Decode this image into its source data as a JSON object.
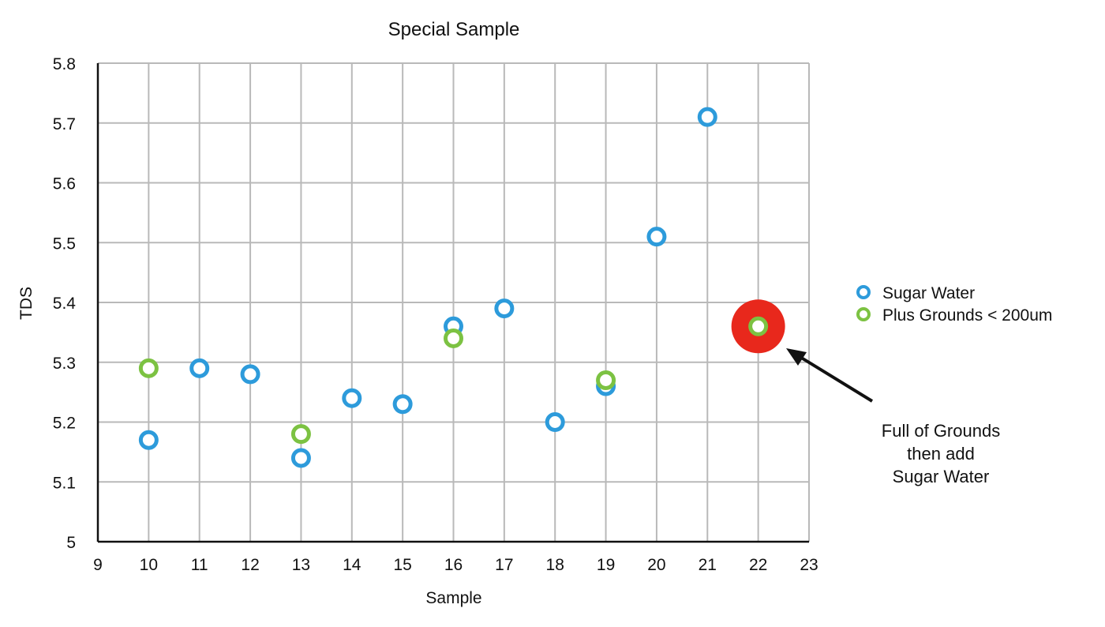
{
  "chart_data": {
    "type": "scatter",
    "title": "Special Sample",
    "xlabel": "Sample",
    "ylabel": "TDS",
    "xlim": [
      9,
      23
    ],
    "ylim": [
      5,
      5.8
    ],
    "x_ticks": [
      9,
      10,
      11,
      12,
      13,
      14,
      15,
      16,
      17,
      18,
      19,
      20,
      21,
      22,
      23
    ],
    "y_ticks": [
      5,
      5.1,
      5.2,
      5.3,
      5.4,
      5.5,
      5.6,
      5.7,
      5.8
    ],
    "y_tick_labels": [
      "5",
      "5.1",
      "5.2",
      "5.3",
      "5.4",
      "5.5",
      "5.6",
      "5.7",
      "5.8"
    ],
    "grid": true,
    "legend_position": "right",
    "series": [
      {
        "name": "Sugar Water",
        "color": "#2d9bdb",
        "marker": "ring",
        "points": [
          {
            "x": 10,
            "y": 5.17
          },
          {
            "x": 11,
            "y": 5.29
          },
          {
            "x": 12,
            "y": 5.28
          },
          {
            "x": 13,
            "y": 5.14
          },
          {
            "x": 14,
            "y": 5.24
          },
          {
            "x": 15,
            "y": 5.23
          },
          {
            "x": 16,
            "y": 5.36
          },
          {
            "x": 17,
            "y": 5.39
          },
          {
            "x": 18,
            "y": 5.2
          },
          {
            "x": 19,
            "y": 5.26
          },
          {
            "x": 20,
            "y": 5.51
          },
          {
            "x": 21,
            "y": 5.71
          }
        ]
      },
      {
        "name": "Plus Grounds < 200um",
        "color": "#7cc242",
        "marker": "ring",
        "points": [
          {
            "x": 10,
            "y": 5.29
          },
          {
            "x": 13,
            "y": 5.18
          },
          {
            "x": 16,
            "y": 5.34
          },
          {
            "x": 19,
            "y": 5.27
          },
          {
            "x": 22,
            "y": 5.36
          }
        ]
      }
    ],
    "highlight": {
      "x": 22,
      "y": 5.36,
      "color": "#e8281c"
    },
    "annotation": {
      "lines": [
        "Full of Grounds",
        "then add",
        "Sugar Water"
      ],
      "target": {
        "x": 22,
        "y": 5.36
      }
    }
  }
}
